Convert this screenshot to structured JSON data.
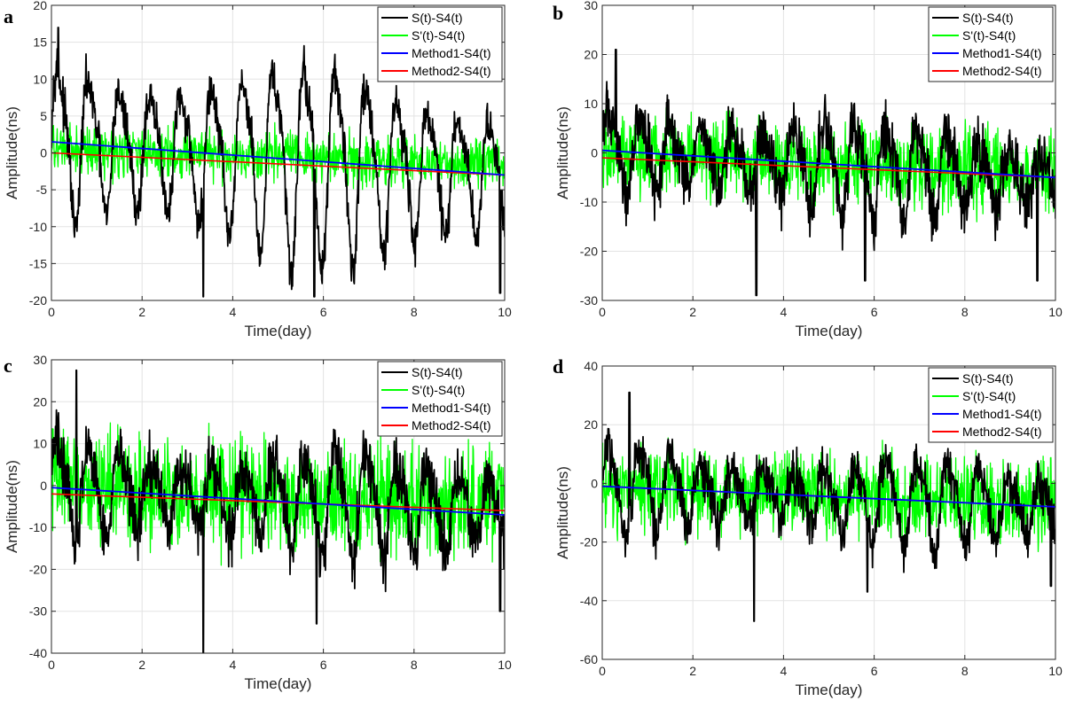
{
  "figure": {
    "colors": {
      "s_diff": "#000000",
      "s_prime_diff": "#00ff00",
      "method1": "#0000ff",
      "method2": "#ff0000",
      "grid": "#e3e3e3",
      "axis": "#262626"
    }
  },
  "chart_data": [
    {
      "type": "line",
      "panel": "a",
      "xlabel": "Time(day)",
      "ylabel": "Amplitude(ns)",
      "xlim": [
        0,
        10
      ],
      "ylim": [
        -20,
        20
      ],
      "xticks": [
        "0",
        "2",
        "4",
        "6",
        "8",
        "10"
      ],
      "yticks": [
        "-20",
        "-15",
        "-10",
        "-5",
        "0",
        "5",
        "10",
        "15",
        "20"
      ],
      "legend_position": "top-right",
      "series": [
        {
          "name": "S(t)-S4(t)",
          "kind": "oscillation",
          "period_days": 0.68,
          "amplitude": 13,
          "noise": 2.5,
          "trend": [
            1.5,
            -3
          ],
          "spikes": [
            [
              0.15,
              17
            ],
            [
              3.35,
              -19.5
            ],
            [
              5.8,
              -19.5
            ],
            [
              9.9,
              -19
            ]
          ]
        },
        {
          "name": "S'(t)-S4(t)",
          "kind": "noise",
          "amplitude": 2.5,
          "trend": [
            0.5,
            -1.5
          ]
        },
        {
          "name": "Method1-S4(t)",
          "kind": "linear",
          "x": [
            0,
            10
          ],
          "y": [
            1.5,
            -3
          ]
        },
        {
          "name": "Method2-S4(t)",
          "kind": "linear",
          "x": [
            0,
            10
          ],
          "y": [
            0,
            -3
          ]
        }
      ]
    },
    {
      "type": "line",
      "panel": "b",
      "xlabel": "Time(day)",
      "ylabel": "Amplitude(ns)",
      "xlim": [
        0,
        10
      ],
      "ylim": [
        -30,
        30
      ],
      "xticks": [
        "0",
        "2",
        "4",
        "6",
        "8",
        "10"
      ],
      "yticks": [
        "-30",
        "-20",
        "-10",
        "0",
        "10",
        "20",
        "30"
      ],
      "legend_position": "top-right",
      "series": [
        {
          "name": "S(t)-S4(t)",
          "kind": "oscillation",
          "period_days": 0.68,
          "amplitude": 9,
          "noise": 5,
          "trend": [
            0.5,
            -5
          ],
          "spikes": [
            [
              0.3,
              21
            ],
            [
              3.4,
              -29
            ],
            [
              5.8,
              -26
            ],
            [
              9.6,
              -26
            ]
          ]
        },
        {
          "name": "S'(t)-S4(t)",
          "kind": "noise",
          "amplitude": 6,
          "trend": [
            0,
            -4
          ]
        },
        {
          "name": "Method1-S4(t)",
          "kind": "linear",
          "x": [
            0,
            10
          ],
          "y": [
            0.5,
            -5
          ]
        },
        {
          "name": "Method2-S4(t)",
          "kind": "linear",
          "x": [
            0,
            10
          ],
          "y": [
            -1,
            -5
          ]
        }
      ]
    },
    {
      "type": "line",
      "panel": "c",
      "xlabel": "Time(day)",
      "ylabel": "Amplitude(ns)",
      "xlim": [
        0,
        10
      ],
      "ylim": [
        -40,
        30
      ],
      "xticks": [
        "0",
        "2",
        "4",
        "6",
        "8",
        "10"
      ],
      "yticks": [
        "-40",
        "-30",
        "-20",
        "-10",
        "0",
        "10",
        "20",
        "30"
      ],
      "legend_position": "top-right",
      "series": [
        {
          "name": "S(t)-S4(t)",
          "kind": "oscillation",
          "period_days": 0.68,
          "amplitude": 12,
          "noise": 6,
          "trend": [
            0,
            -6
          ],
          "spikes": [
            [
              0.55,
              27.5
            ],
            [
              3.35,
              -40
            ],
            [
              5.85,
              -33
            ],
            [
              9.9,
              -30
            ]
          ]
        },
        {
          "name": "S'(t)-S4(t)",
          "kind": "noise",
          "amplitude": 10,
          "trend": [
            0,
            -5
          ]
        },
        {
          "name": "Method1-S4(t)",
          "kind": "linear",
          "x": [
            0,
            10
          ],
          "y": [
            -0.5,
            -7
          ]
        },
        {
          "name": "Method2-S4(t)",
          "kind": "linear",
          "x": [
            0,
            10
          ],
          "y": [
            -2,
            -6
          ]
        }
      ]
    },
    {
      "type": "line",
      "panel": "d",
      "xlabel": "Time(day)",
      "ylabel": "Amplitude(ns)",
      "xlim": [
        0,
        10
      ],
      "ylim": [
        -60,
        40
      ],
      "xticks": [
        "0",
        "2",
        "4",
        "6",
        "8",
        "10"
      ],
      "yticks": [
        "-60",
        "-40",
        "-20",
        "0",
        "20",
        "40"
      ],
      "legend_position": "top-right",
      "series": [
        {
          "name": "S(t)-S4(t)",
          "kind": "oscillation",
          "period_days": 0.68,
          "amplitude": 14,
          "noise": 7,
          "trend": [
            -1,
            -8
          ],
          "spikes": [
            [
              0.6,
              31
            ],
            [
              3.35,
              -47
            ],
            [
              5.85,
              -37
            ],
            [
              9.9,
              -35
            ]
          ]
        },
        {
          "name": "S'(t)-S4(t)",
          "kind": "noise",
          "amplitude": 11,
          "trend": [
            -1,
            -7
          ]
        },
        {
          "name": "Method1-S4(t)",
          "kind": "linear",
          "x": [
            0,
            10
          ],
          "y": [
            -1,
            -8
          ]
        },
        {
          "name": "Method2-S4(t)",
          "kind": "linear",
          "x": [
            0,
            10
          ],
          "y": [
            -1,
            -8
          ]
        }
      ]
    }
  ]
}
